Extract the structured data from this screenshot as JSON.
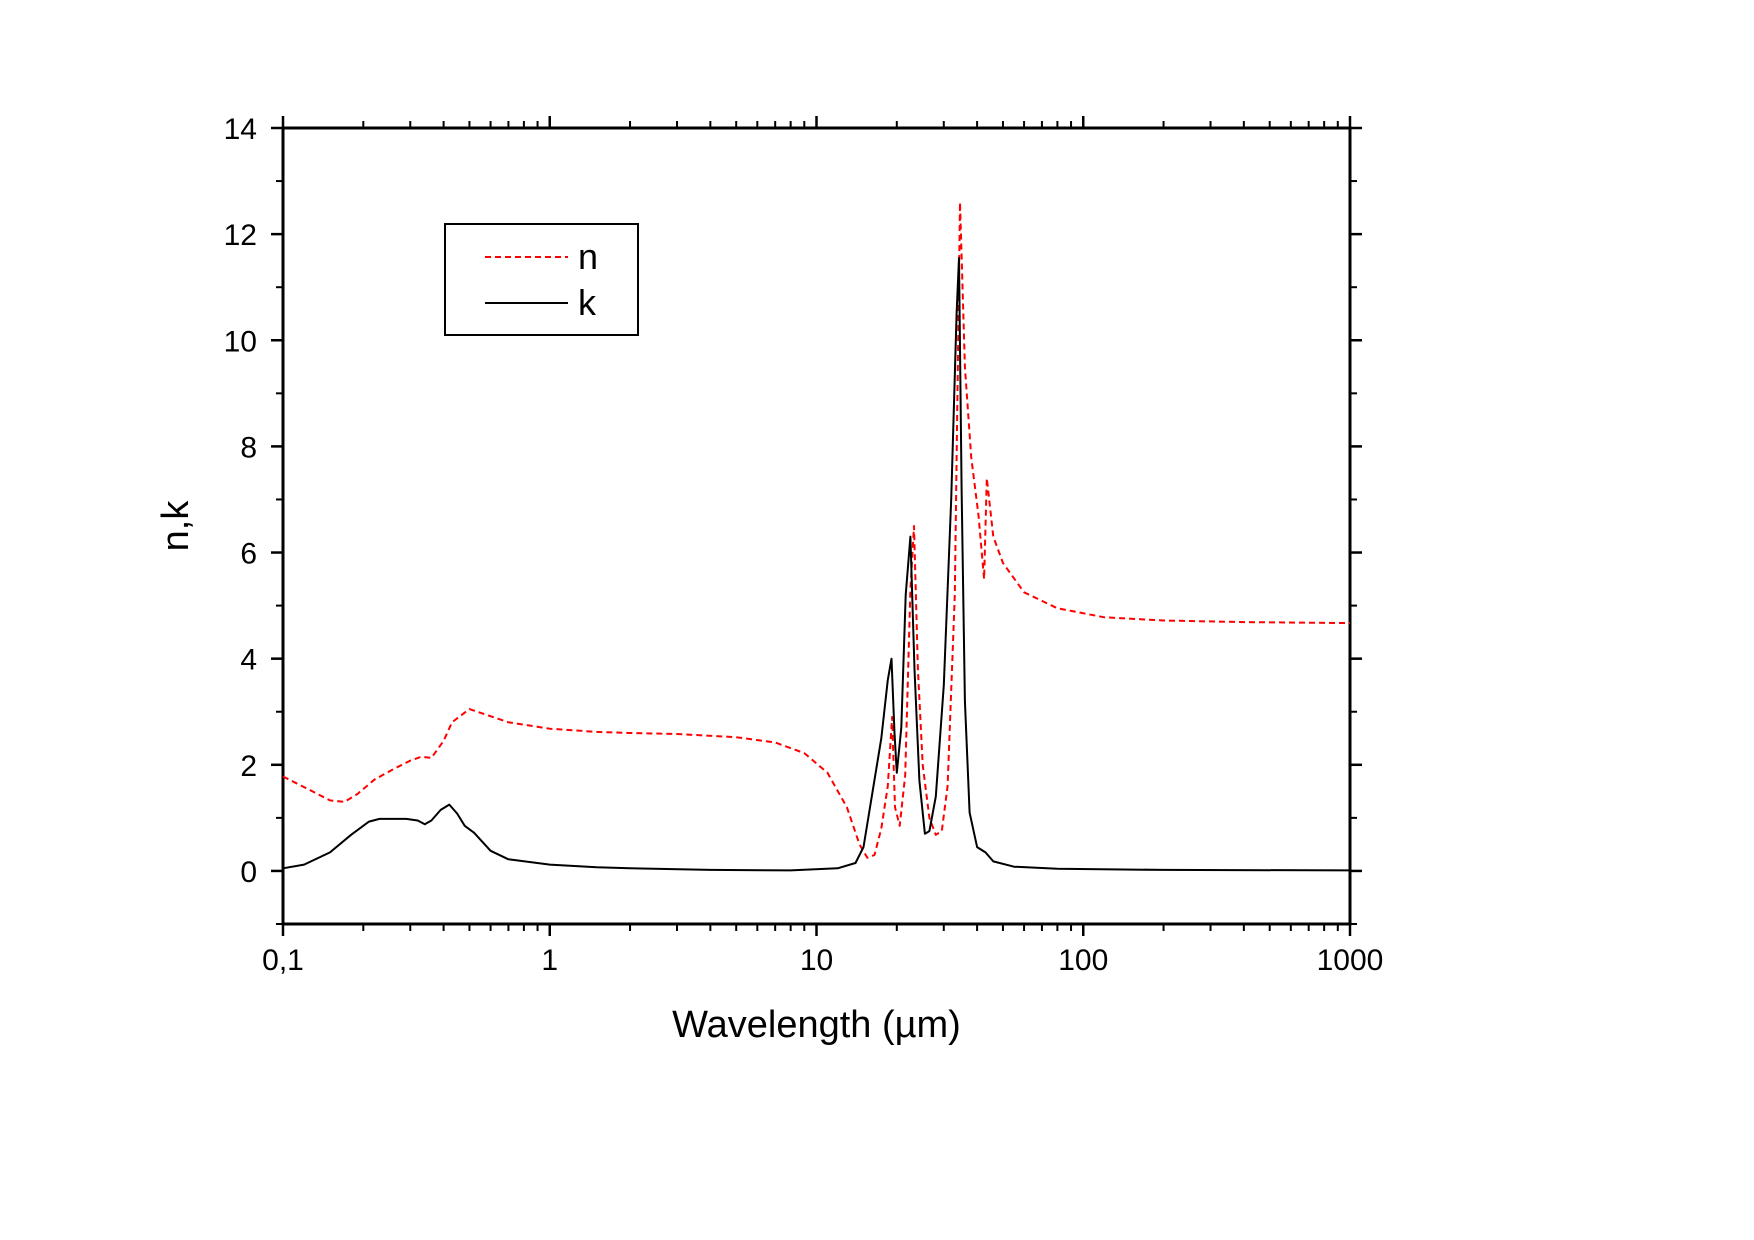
{
  "chart_data": {
    "type": "line",
    "title": "",
    "xlabel": "Wavelength (µm)",
    "ylabel": "n,k",
    "xscale": "log",
    "xlim": [
      0.1,
      1000
    ],
    "ylim": [
      -1,
      14
    ],
    "grid": false,
    "legend_position": "top-left",
    "x_tick_labels": [
      "0,1",
      "1",
      "10",
      "100",
      "1000"
    ],
    "x_tick_values": [
      0.1,
      1,
      10,
      100,
      1000
    ],
    "y_tick_labels": [
      "0",
      "2",
      "4",
      "6",
      "8",
      "10",
      "12",
      "14"
    ],
    "y_tick_values": [
      0,
      2,
      4,
      6,
      8,
      10,
      12,
      14
    ],
    "series": [
      {
        "name": "n",
        "color": "#ff0000",
        "style": "dashed",
        "points": [
          [
            0.1,
            1.78
          ],
          [
            0.12,
            1.58
          ],
          [
            0.15,
            1.33
          ],
          [
            0.17,
            1.3
          ],
          [
            0.19,
            1.45
          ],
          [
            0.22,
            1.72
          ],
          [
            0.26,
            1.92
          ],
          [
            0.3,
            2.08
          ],
          [
            0.33,
            2.15
          ],
          [
            0.36,
            2.13
          ],
          [
            0.4,
            2.45
          ],
          [
            0.43,
            2.8
          ],
          [
            0.47,
            2.95
          ],
          [
            0.5,
            3.05
          ],
          [
            0.55,
            2.98
          ],
          [
            0.7,
            2.8
          ],
          [
            1,
            2.68
          ],
          [
            1.5,
            2.62
          ],
          [
            2,
            2.6
          ],
          [
            3,
            2.58
          ],
          [
            5,
            2.52
          ],
          [
            7,
            2.42
          ],
          [
            9,
            2.22
          ],
          [
            11,
            1.85
          ],
          [
            13,
            1.2
          ],
          [
            14.5,
            0.5
          ],
          [
            15.5,
            0.25
          ],
          [
            16.5,
            0.3
          ],
          [
            17.5,
            0.8
          ],
          [
            18.5,
            1.6
          ],
          [
            19.2,
            2.9
          ],
          [
            19.7,
            1.2
          ],
          [
            20.5,
            0.85
          ],
          [
            21.5,
            1.8
          ],
          [
            22.5,
            5.3
          ],
          [
            23.2,
            6.5
          ],
          [
            24,
            3.8
          ],
          [
            25,
            2.0
          ],
          [
            26.5,
            1.0
          ],
          [
            28,
            0.68
          ],
          [
            29.5,
            0.75
          ],
          [
            31,
            1.6
          ],
          [
            33,
            5.2
          ],
          [
            34.5,
            12.6
          ],
          [
            36,
            9.5
          ],
          [
            38,
            7.8
          ],
          [
            40.5,
            6.7
          ],
          [
            42.5,
            5.5
          ],
          [
            43.5,
            7.4
          ],
          [
            46,
            6.3
          ],
          [
            50,
            5.8
          ],
          [
            60,
            5.25
          ],
          [
            80,
            4.95
          ],
          [
            120,
            4.78
          ],
          [
            200,
            4.72
          ],
          [
            400,
            4.69
          ],
          [
            1000,
            4.67
          ]
        ]
      },
      {
        "name": "k",
        "color": "#000000",
        "style": "solid",
        "points": [
          [
            0.1,
            0.05
          ],
          [
            0.12,
            0.12
          ],
          [
            0.15,
            0.35
          ],
          [
            0.18,
            0.68
          ],
          [
            0.21,
            0.93
          ],
          [
            0.23,
            0.98
          ],
          [
            0.26,
            0.98
          ],
          [
            0.29,
            0.98
          ],
          [
            0.32,
            0.95
          ],
          [
            0.34,
            0.88
          ],
          [
            0.36,
            0.95
          ],
          [
            0.39,
            1.15
          ],
          [
            0.42,
            1.25
          ],
          [
            0.45,
            1.08
          ],
          [
            0.48,
            0.85
          ],
          [
            0.52,
            0.72
          ],
          [
            0.6,
            0.38
          ],
          [
            0.7,
            0.22
          ],
          [
            1,
            0.12
          ],
          [
            1.5,
            0.07
          ],
          [
            2,
            0.05
          ],
          [
            4,
            0.02
          ],
          [
            8,
            0.01
          ],
          [
            12,
            0.05
          ],
          [
            14,
            0.15
          ],
          [
            15,
            0.45
          ],
          [
            16,
            1.3
          ],
          [
            17.5,
            2.5
          ],
          [
            18.5,
            3.6
          ],
          [
            19.1,
            4.0
          ],
          [
            19.6,
            2.6
          ],
          [
            20,
            1.85
          ],
          [
            20.8,
            2.7
          ],
          [
            21.6,
            5.2
          ],
          [
            22.5,
            6.3
          ],
          [
            23.3,
            3.8
          ],
          [
            24.3,
            1.7
          ],
          [
            25.5,
            0.7
          ],
          [
            26.5,
            0.75
          ],
          [
            28,
            1.4
          ],
          [
            30,
            3.5
          ],
          [
            32,
            7.0
          ],
          [
            33.5,
            10.5
          ],
          [
            34.2,
            11.55
          ],
          [
            35,
            7.2
          ],
          [
            36,
            3.2
          ],
          [
            37.5,
            1.1
          ],
          [
            40,
            0.45
          ],
          [
            43,
            0.35
          ],
          [
            46,
            0.18
          ],
          [
            55,
            0.08
          ],
          [
            80,
            0.04
          ],
          [
            200,
            0.02
          ],
          [
            1000,
            0.01
          ]
        ]
      }
    ]
  }
}
